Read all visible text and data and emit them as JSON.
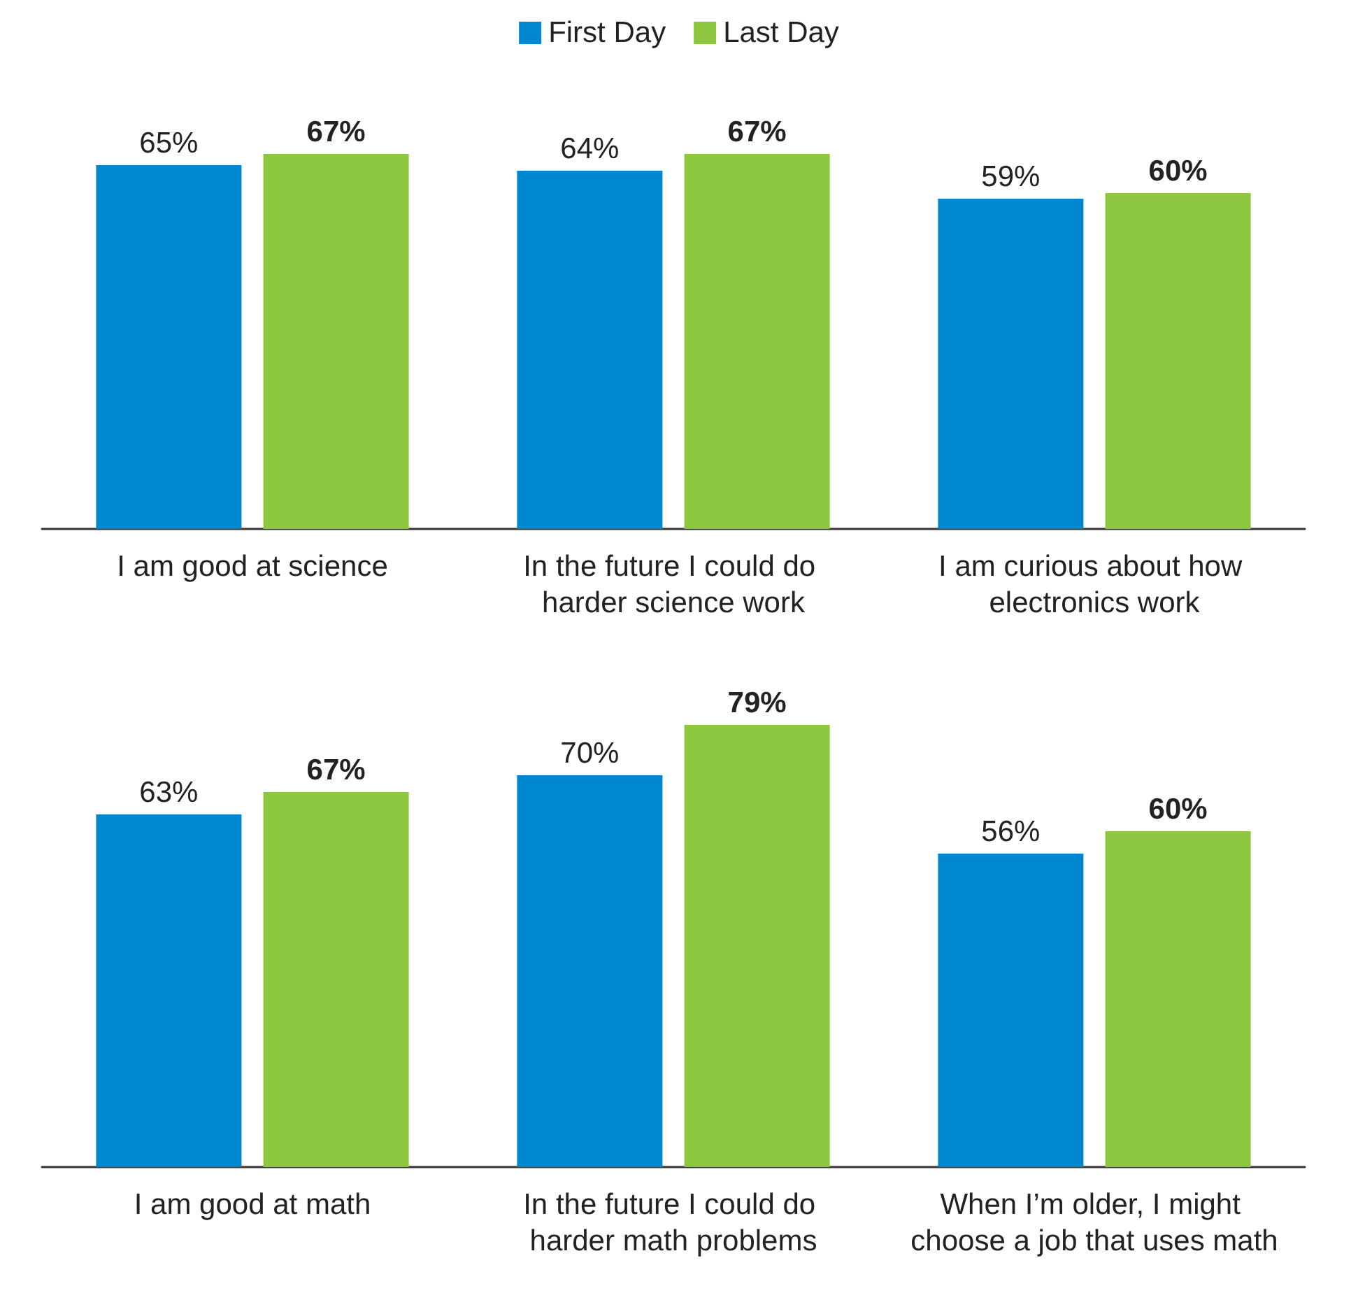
{
  "chart_data": [
    {
      "type": "bar",
      "categories": [
        "I am good at science",
        "In the future I could do harder science work",
        "I am curious about how electronics work"
      ],
      "series": [
        {
          "name": "First Day",
          "color": "#0087cf",
          "values": [
            65,
            64,
            59
          ],
          "value_labels": [
            "65%",
            "64%",
            "59%"
          ]
        },
        {
          "name": "Last Day",
          "color": "#8dc63f",
          "values": [
            67,
            67,
            60
          ],
          "value_labels": [
            "67%",
            "67%",
            "60%"
          ]
        }
      ],
      "tick_labels": "x",
      "legend": "top"
    },
    {
      "type": "bar",
      "categories": [
        "I am good at math",
        "In the future I could do harder math problems",
        "When I’m older, I might choose a job that uses math"
      ],
      "series": [
        {
          "color": "#0087cf",
          "values": [
            63,
            70,
            56
          ],
          "value_labels": [
            "63%",
            "70%",
            "56%"
          ]
        },
        {
          "color": "#8dc63f",
          "values": [
            67,
            79,
            60
          ],
          "value_labels": [
            "67%",
            "79%",
            "60%"
          ]
        }
      ],
      "tick_labels": "x"
    }
  ]
}
